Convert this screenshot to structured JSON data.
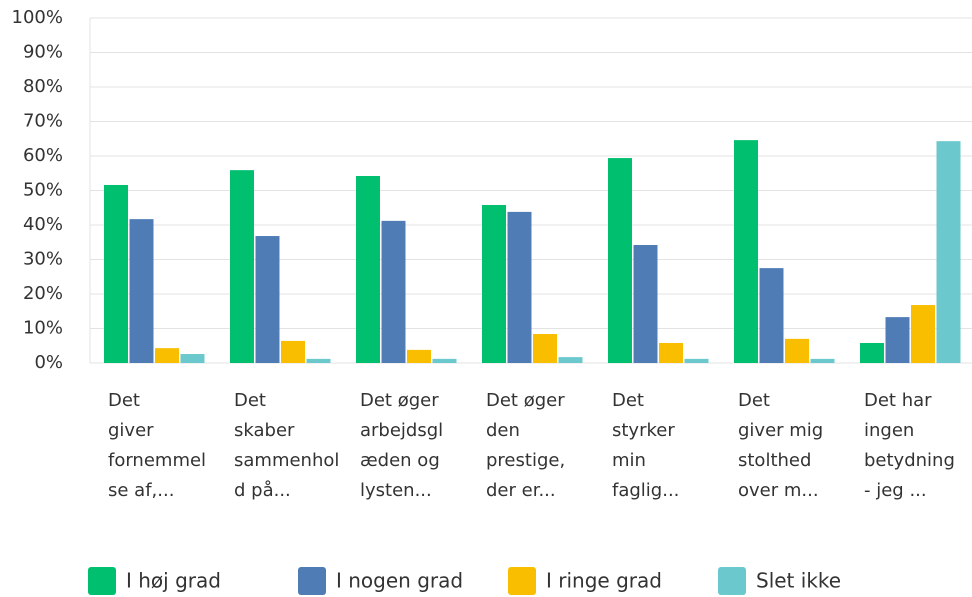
{
  "chart_data": {
    "type": "bar",
    "categories": [
      [
        "Det",
        "giver",
        "fornemmel",
        "se af,..."
      ],
      [
        "Det",
        "skaber",
        "sammenhol",
        "d på..."
      ],
      [
        "Det øger",
        "arbejdsgl",
        "æden og",
        "lysten..."
      ],
      [
        "Det øger",
        "den",
        "prestige,",
        "der er..."
      ],
      [
        "Det",
        "styrker",
        "min",
        "faglig..."
      ],
      [
        "Det",
        "giver mig",
        "stolthed",
        "over m..."
      ],
      [
        "Det har",
        "ingen",
        "betydning",
        "- jeg ..."
      ]
    ],
    "series": [
      {
        "name": "I høj grad",
        "color": "#00bf6f",
        "values": [
          51.6,
          55.9,
          54.2,
          45.8,
          59.4,
          64.6,
          5.8
        ]
      },
      {
        "name": "I nogen grad",
        "color": "#507cb6",
        "values": [
          41.7,
          36.8,
          41.2,
          43.8,
          34.2,
          27.5,
          13.3
        ]
      },
      {
        "name": "I ringe grad",
        "color": "#f9be00",
        "values": [
          4.3,
          6.4,
          3.8,
          8.4,
          5.8,
          7.0,
          16.8
        ]
      },
      {
        "name": "Slet ikke",
        "color": "#6bc8cd",
        "values": [
          2.6,
          1.2,
          1.2,
          1.7,
          1.2,
          1.2,
          64.3
        ]
      }
    ],
    "ylim": [
      0,
      100
    ],
    "yticks": [
      {
        "value": 0,
        "label": "0%"
      },
      {
        "value": 10,
        "label": "10%"
      },
      {
        "value": 20,
        "label": "20%"
      },
      {
        "value": 30,
        "label": "30%"
      },
      {
        "value": 40,
        "label": "40%"
      },
      {
        "value": 50,
        "label": "50%"
      },
      {
        "value": 60,
        "label": "60%"
      },
      {
        "value": 70,
        "label": "70%"
      },
      {
        "value": 80,
        "label": "80%"
      },
      {
        "value": 90,
        "label": "90%"
      },
      {
        "value": 100,
        "label": "100%"
      }
    ],
    "grid": true
  }
}
